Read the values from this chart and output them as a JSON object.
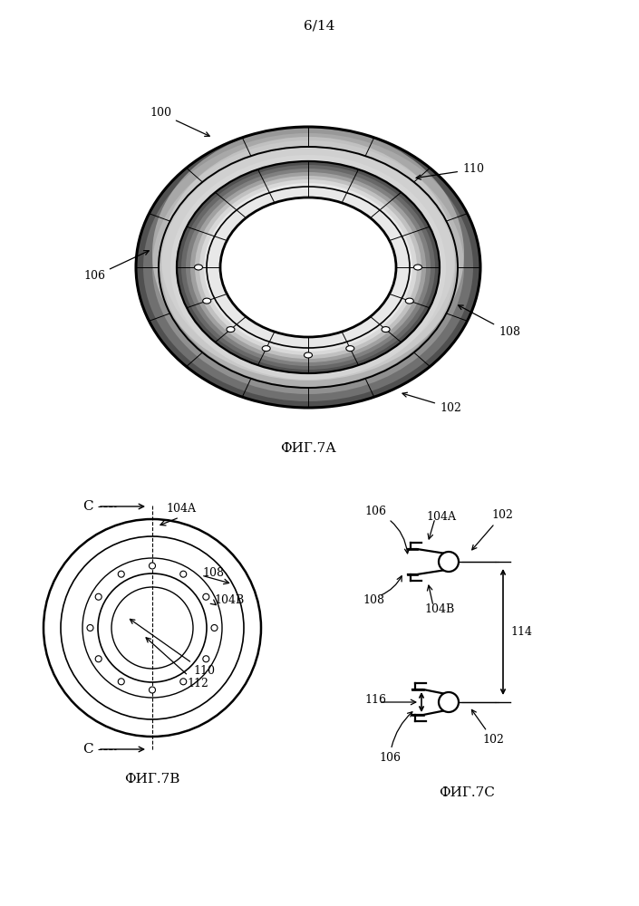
{
  "page_label": "6/14",
  "fig7a_label": "ФИГ.7А",
  "fig7b_label": "ФИГ.7В",
  "fig7c_label": "ФИГ.7С",
  "bg_color": "#ffffff",
  "line_color": "#000000",
  "label_fontsize": 9,
  "caption_fontsize": 11,
  "pagelabel_fontsize": 11
}
